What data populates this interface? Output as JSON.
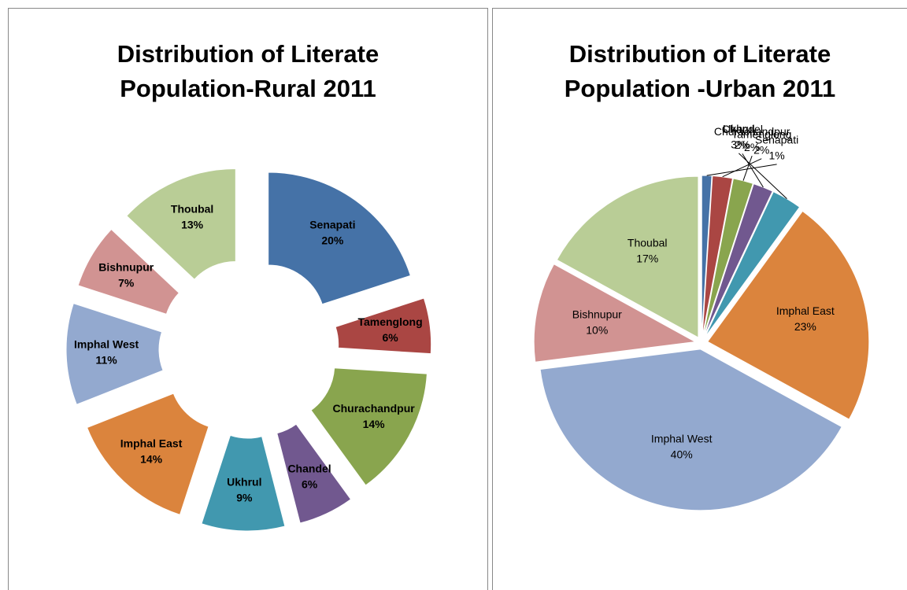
{
  "chart_data": [
    {
      "type": "doughnut",
      "title": "Distribution of Literate Population-Rural 2011",
      "categories": [
        "Senapati",
        "Tamenglong",
        "Churachandpur",
        "Chandel",
        "Ukhrul",
        "Imphal East",
        "Imphal West",
        "Bishnupur",
        "Thoubal"
      ],
      "values": [
        20,
        6,
        14,
        6,
        9,
        14,
        11,
        7,
        13
      ],
      "value_labels": [
        "20%",
        "6%",
        "14%",
        "6%",
        "9%",
        "14%",
        "11%",
        "7%",
        "13%"
      ],
      "colors": [
        "#4572a7",
        "#aa4643",
        "#89a54e",
        "#71588f",
        "#4198af",
        "#db843d",
        "#93a9cf",
        "#d19392",
        "#b9cd96"
      ]
    },
    {
      "type": "pie",
      "title": "Distribution of Literate Population -Urban 2011",
      "categories": [
        "Senapati",
        "Tamenglong",
        "Churachandpur",
        "Chandel",
        "Ukhrul",
        "Imphal East",
        "Imphal West",
        "Bishnupur",
        "Thoubal"
      ],
      "values": [
        1,
        2,
        2,
        2,
        3,
        23,
        40,
        10,
        17
      ],
      "value_labels": [
        "1%",
        "2%",
        "2%",
        "2%",
        "3%",
        "23%",
        "40%",
        "10%",
        "17%"
      ],
      "colors": [
        "#4572a7",
        "#aa4643",
        "#89a54e",
        "#71588f",
        "#4198af",
        "#db843d",
        "#93a9cf",
        "#d19392",
        "#b9cd96"
      ]
    }
  ]
}
